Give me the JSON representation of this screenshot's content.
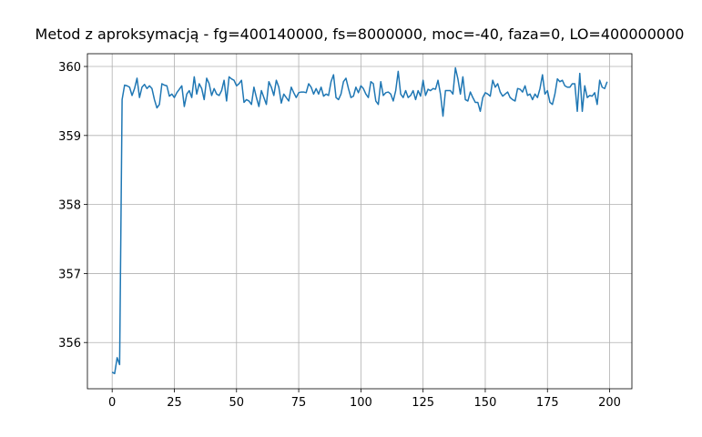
{
  "chart_data": {
    "type": "line",
    "title": "Metod z aproksymacją - fg=400140000, fs=8000000, moc=-40, faza=0, LO=400000000",
    "color": "#1f77b4",
    "grid": true,
    "xlim": [
      -9.95,
      208.95
    ],
    "xticks": [
      0,
      25,
      50,
      75,
      100,
      125,
      150,
      175,
      200
    ],
    "ylim": [
      355.33,
      360.185
    ],
    "yticks": [
      356,
      357,
      358,
      359,
      360
    ],
    "x": [
      0,
      1,
      2,
      3,
      4,
      5,
      6,
      7,
      8,
      9,
      10,
      11,
      12,
      13,
      14,
      15,
      16,
      17,
      18,
      19,
      20,
      21,
      22,
      23,
      24,
      25,
      26,
      27,
      28,
      29,
      30,
      31,
      32,
      33,
      34,
      35,
      36,
      37,
      38,
      39,
      40,
      41,
      42,
      43,
      44,
      45,
      46,
      47,
      48,
      49,
      50,
      51,
      52,
      53,
      54,
      55,
      56,
      57,
      58,
      59,
      60,
      61,
      62,
      63,
      64,
      65,
      66,
      67,
      68,
      69,
      70,
      71,
      72,
      73,
      74,
      75,
      76,
      77,
      78,
      79,
      80,
      81,
      82,
      83,
      84,
      85,
      86,
      87,
      88,
      89,
      90,
      91,
      92,
      93,
      94,
      95,
      96,
      97,
      98,
      99,
      100,
      101,
      102,
      103,
      104,
      105,
      106,
      107,
      108,
      109,
      110,
      111,
      112,
      113,
      114,
      115,
      116,
      117,
      118,
      119,
      120,
      121,
      122,
      123,
      124,
      125,
      126,
      127,
      128,
      129,
      130,
      131,
      132,
      133,
      134,
      135,
      136,
      137,
      138,
      139,
      140,
      141,
      142,
      143,
      144,
      145,
      146,
      147,
      148,
      149,
      150,
      151,
      152,
      153,
      154,
      155,
      156,
      157,
      158,
      159,
      160,
      161,
      162,
      163,
      164,
      165,
      166,
      167,
      168,
      169,
      170,
      171,
      172,
      173,
      174,
      175,
      176,
      177,
      178,
      179,
      180,
      181,
      182,
      183,
      184,
      185,
      186,
      187,
      188,
      189,
      190,
      191,
      192,
      193,
      194,
      195,
      196,
      197,
      198,
      199
    ],
    "values": [
      355.57,
      355.55,
      355.78,
      355.68,
      359.52,
      359.73,
      359.72,
      359.7,
      359.58,
      359.68,
      359.83,
      359.55,
      359.7,
      359.74,
      359.68,
      359.72,
      359.68,
      359.52,
      359.4,
      359.45,
      359.75,
      359.73,
      359.72,
      359.57,
      359.6,
      359.55,
      359.62,
      359.67,
      359.72,
      359.42,
      359.6,
      359.65,
      359.55,
      359.85,
      359.6,
      359.75,
      359.68,
      359.52,
      359.83,
      359.75,
      359.58,
      359.68,
      359.6,
      359.58,
      359.65,
      359.8,
      359.5,
      359.85,
      359.82,
      359.8,
      359.72,
      359.75,
      359.8,
      359.48,
      359.52,
      359.5,
      359.45,
      359.7,
      359.55,
      359.42,
      359.65,
      359.55,
      359.45,
      359.78,
      359.7,
      359.58,
      359.8,
      359.7,
      359.47,
      359.6,
      359.55,
      359.5,
      359.7,
      359.62,
      359.55,
      359.62,
      359.63,
      359.63,
      359.62,
      359.75,
      359.7,
      359.6,
      359.68,
      359.6,
      359.7,
      359.57,
      359.6,
      359.58,
      359.78,
      359.88,
      359.55,
      359.52,
      359.6,
      359.78,
      359.83,
      359.68,
      359.55,
      359.57,
      359.7,
      359.62,
      359.72,
      359.68,
      359.6,
      359.55,
      359.78,
      359.75,
      359.5,
      359.45,
      359.78,
      359.58,
      359.62,
      359.63,
      359.6,
      359.5,
      359.65,
      359.93,
      359.6,
      359.55,
      359.65,
      359.55,
      359.58,
      359.65,
      359.52,
      359.65,
      359.57,
      359.8,
      359.58,
      359.67,
      359.65,
      359.68,
      359.67,
      359.8,
      359.6,
      359.28,
      359.65,
      359.65,
      359.65,
      359.6,
      359.98,
      359.82,
      359.6,
      359.85,
      359.52,
      359.5,
      359.63,
      359.55,
      359.48,
      359.48,
      359.35,
      359.55,
      359.62,
      359.6,
      359.57,
      359.8,
      359.7,
      359.75,
      359.63,
      359.57,
      359.6,
      359.63,
      359.55,
      359.52,
      359.5,
      359.68,
      359.67,
      359.63,
      359.72,
      359.58,
      359.6,
      359.52,
      359.6,
      359.55,
      359.68,
      359.88,
      359.6,
      359.65,
      359.48,
      359.45,
      359.6,
      359.82,
      359.78,
      359.8,
      359.72,
      359.7,
      359.7,
      359.75,
      359.75,
      359.35,
      359.9,
      359.35,
      359.72,
      359.55,
      359.58,
      359.57,
      359.62,
      359.45,
      359.8,
      359.7,
      359.68,
      359.78
    ]
  }
}
